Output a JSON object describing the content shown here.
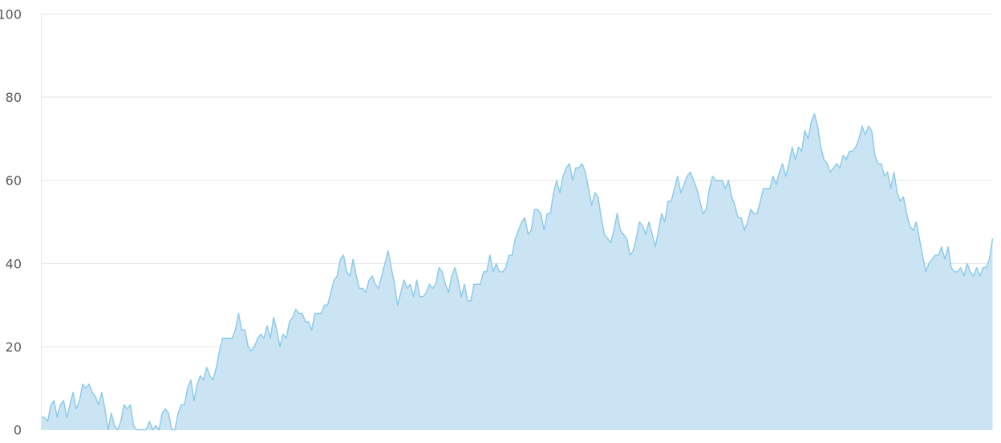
{
  "chart_data": {
    "type": "area",
    "title": "",
    "xlabel": "",
    "ylabel": "",
    "ylim": [
      0,
      100
    ],
    "yticks": [
      0,
      20,
      40,
      60,
      80,
      100
    ],
    "grid": true,
    "legend": "none",
    "colors": {
      "fill": "#cbe4f4",
      "line": "#8ecbea",
      "grid": "#e6e6e6",
      "tick_text": "#5a5a5a"
    },
    "series": [
      {
        "values": [
          3,
          3,
          2,
          6,
          7,
          3,
          6,
          7,
          3,
          6,
          9,
          5,
          7,
          11,
          10,
          11,
          9,
          8,
          6,
          9,
          5,
          0,
          4,
          1,
          0,
          2,
          6,
          5,
          6,
          1,
          0,
          0,
          0,
          0,
          2,
          0,
          1,
          0,
          4,
          5,
          4,
          0,
          0,
          4,
          6,
          6,
          10,
          12,
          7,
          11,
          13,
          12,
          15,
          13,
          12,
          15,
          19,
          22,
          22,
          22,
          22,
          24,
          28,
          24,
          24,
          20,
          19,
          20,
          22,
          23,
          22,
          25,
          22,
          27,
          24,
          20,
          23,
          22,
          26,
          27,
          29,
          28,
          28,
          26,
          26,
          24,
          28,
          28,
          28,
          30,
          30,
          33,
          36,
          37,
          41,
          42,
          38,
          37,
          41,
          37,
          34,
          34,
          33,
          36,
          37,
          35,
          34,
          37,
          40,
          43,
          39,
          35,
          30,
          33,
          36,
          34,
          35,
          32,
          36,
          32,
          32,
          33,
          35,
          34,
          35,
          39,
          38,
          35,
          33,
          37,
          39,
          36,
          32,
          35,
          31,
          31,
          35,
          35,
          35,
          38,
          38,
          42,
          38,
          40,
          38,
          38,
          39,
          42,
          42,
          46,
          48,
          50,
          51,
          47,
          48,
          53,
          53,
          52,
          48,
          52,
          52,
          57,
          60,
          57,
          61,
          63,
          64,
          60,
          63,
          63,
          64,
          62,
          58,
          54,
          57,
          56,
          51,
          47,
          46,
          45,
          48,
          52,
          48,
          47,
          46,
          42,
          43,
          46,
          50,
          49,
          47,
          50,
          47,
          44,
          48,
          52,
          50,
          55,
          55,
          58,
          61,
          57,
          59,
          61,
          62,
          60,
          58,
          55,
          52,
          53,
          58,
          61,
          60,
          60,
          60,
          58,
          60,
          56,
          54,
          51,
          51,
          48,
          50,
          53,
          52,
          52,
          55,
          58,
          58,
          58,
          61,
          59,
          62,
          64,
          61,
          64,
          68,
          65,
          68,
          67,
          72,
          70,
          74,
          76,
          73,
          68,
          65,
          64,
          62,
          63,
          64,
          63,
          66,
          65,
          67,
          67,
          68,
          70,
          73,
          71,
          73,
          72,
          66,
          64,
          64,
          61,
          62,
          58,
          62,
          57,
          55,
          56,
          52,
          49,
          48,
          50,
          46,
          42,
          38,
          40,
          41,
          42,
          42,
          44,
          41,
          44,
          39,
          38,
          38,
          39,
          37,
          40,
          38,
          37,
          39,
          37,
          39,
          39,
          41,
          46
        ]
      }
    ]
  }
}
